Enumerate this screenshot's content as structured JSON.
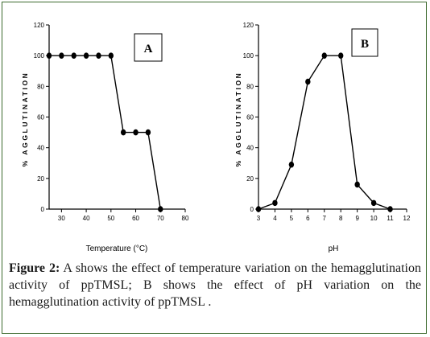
{
  "caption": {
    "figure_label": "Figure 2:",
    "text": " A shows the effect of temperature variation on the hemagglutination activity of ppTMSL; B shows the effect of pH variation on the hemagglutination activity of ppTMSL ."
  },
  "chart_data": [
    {
      "type": "line",
      "panel_label": "A",
      "xlabel": "Temperature (°C)",
      "ylabel": "% AGGLUTINATION",
      "xlim": [
        25,
        80
      ],
      "ylim": [
        0,
        120
      ],
      "xticks": [
        30,
        40,
        50,
        60,
        70,
        80
      ],
      "yticks": [
        0,
        20,
        40,
        60,
        80,
        100,
        120
      ],
      "grid": false,
      "series": [
        {
          "x": [
            25,
            30,
            35,
            40,
            45,
            50,
            55,
            60,
            65,
            70
          ],
          "y": [
            100,
            100,
            100,
            100,
            100,
            100,
            50,
            50,
            50,
            0
          ]
        }
      ]
    },
    {
      "type": "line",
      "panel_label": "B",
      "xlabel": "pH",
      "ylabel": "% AGGLUTINATION",
      "xlim": [
        3,
        12
      ],
      "ylim": [
        0,
        120
      ],
      "xticks": [
        3,
        4,
        5,
        6,
        7,
        8,
        9,
        10,
        11,
        12
      ],
      "yticks": [
        0,
        20,
        40,
        60,
        80,
        100,
        120
      ],
      "grid": false,
      "series": [
        {
          "x": [
            3,
            4,
            5,
            6,
            7,
            8,
            9,
            10,
            11
          ],
          "y": [
            0,
            4,
            29,
            83,
            100,
            100,
            16,
            4,
            0
          ]
        }
      ]
    }
  ]
}
